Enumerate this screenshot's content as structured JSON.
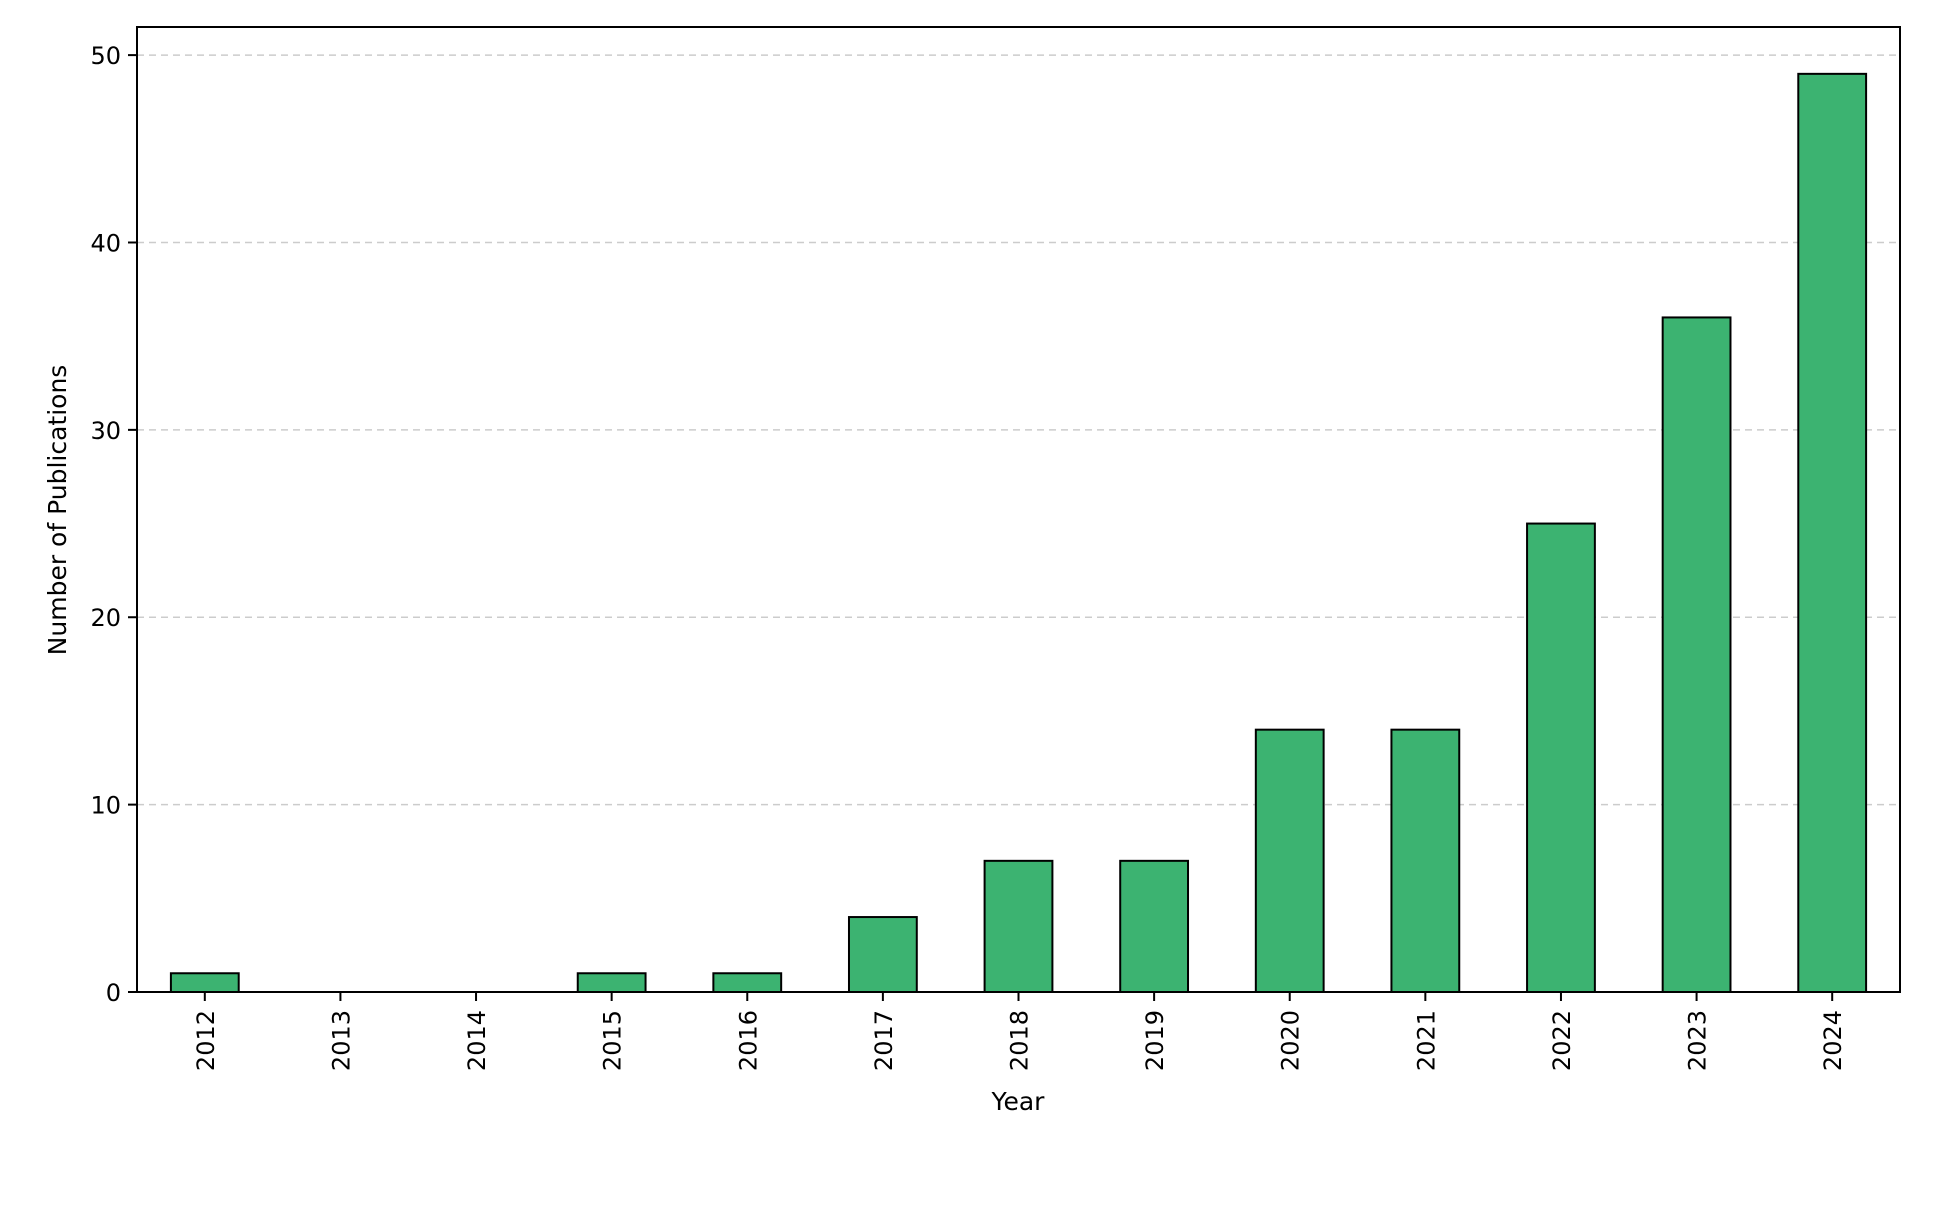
{
  "chart_data": {
    "type": "bar",
    "title": "",
    "xlabel": "Year",
    "ylabel": "Number of Publications",
    "categories": [
      "2012",
      "2013",
      "2014",
      "2015",
      "2016",
      "2017",
      "2018",
      "2019",
      "2020",
      "2021",
      "2022",
      "2023",
      "2024"
    ],
    "values": [
      1,
      0,
      0,
      1,
      1,
      4,
      7,
      7,
      14,
      14,
      25,
      36,
      49
    ],
    "ylim": [
      0,
      51.5
    ],
    "yticks": [
      0,
      10,
      20,
      30,
      40,
      50
    ],
    "grid": "y-dashed",
    "legend": "none",
    "colors": {
      "bar": "#3cb371",
      "edge": "#000000",
      "grid": "#cccccc"
    }
  }
}
